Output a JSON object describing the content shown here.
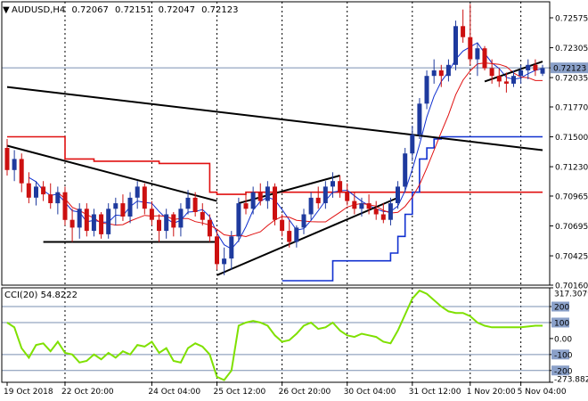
{
  "header": {
    "symbol": "AUDUSD,H4",
    "open": "0.72067",
    "high": "0.72151",
    "low": "0.72047",
    "close": "0.72123"
  },
  "price_axis": {
    "ticks": [
      "0.72575",
      "0.72305",
      "0.72123",
      "0.72035",
      "0.71770",
      "0.71500",
      "0.71230",
      "0.70965",
      "0.70695",
      "0.70425",
      "0.70160"
    ],
    "current_price": "0.72123"
  },
  "cci": {
    "title": "CCI(20) 54.8222",
    "ticks": [
      "317.3079",
      "200",
      "100",
      "0.00",
      "-100",
      "-200",
      "-273.8825"
    ]
  },
  "time_axis": {
    "labels": [
      "19 Oct 2018",
      "22 Oct 20:00",
      "24 Oct 04:00",
      "25 Oct 12:00",
      "26 Oct 20:00",
      "30 Oct 04:00",
      "31 Oct 12:00",
      "1 Nov 20:00",
      "5 Nov 04:00"
    ]
  },
  "colors": {
    "bull": "#1e3a9e",
    "bear": "#cc1010",
    "trendline": "#000000",
    "indicator_red": "#e01010",
    "indicator_blue": "#1030d0",
    "cci_line": "#7fe000",
    "grid": "#7a8fb0"
  },
  "chart_data": {
    "type": "candlestick",
    "symbol": "AUDUSD",
    "timeframe": "H4",
    "ylim": [
      0.7016,
      0.7272
    ],
    "candles": [
      [
        0.714,
        0.7148,
        0.7115,
        0.712
      ],
      [
        0.712,
        0.7138,
        0.711,
        0.713
      ],
      [
        0.713,
        0.7135,
        0.71,
        0.7108
      ],
      [
        0.7108,
        0.7118,
        0.709,
        0.7095
      ],
      [
        0.7095,
        0.711,
        0.7088,
        0.7105
      ],
      [
        0.7105,
        0.711,
        0.7092,
        0.7098
      ],
      [
        0.7098,
        0.7108,
        0.7085,
        0.709
      ],
      [
        0.709,
        0.7105,
        0.708,
        0.71
      ],
      [
        0.71,
        0.7105,
        0.707,
        0.7075
      ],
      [
        0.7075,
        0.7085,
        0.7055,
        0.7068
      ],
      [
        0.7068,
        0.709,
        0.7058,
        0.7085
      ],
      [
        0.7085,
        0.709,
        0.706,
        0.7065
      ],
      [
        0.7065,
        0.7085,
        0.706,
        0.708
      ],
      [
        0.708,
        0.7082,
        0.7058,
        0.7062
      ],
      [
        0.7062,
        0.709,
        0.7058,
        0.7085
      ],
      [
        0.7085,
        0.7095,
        0.707,
        0.709
      ],
      [
        0.709,
        0.7098,
        0.7074,
        0.7078
      ],
      [
        0.7078,
        0.71,
        0.7072,
        0.7095
      ],
      [
        0.7095,
        0.711,
        0.7085,
        0.7105
      ],
      [
        0.7105,
        0.7108,
        0.708,
        0.7085
      ],
      [
        0.7085,
        0.7092,
        0.707,
        0.7075
      ],
      [
        0.7075,
        0.708,
        0.7055,
        0.7065
      ],
      [
        0.7065,
        0.7085,
        0.7058,
        0.708
      ],
      [
        0.708,
        0.7082,
        0.706,
        0.7068
      ],
      [
        0.7068,
        0.709,
        0.706,
        0.7085
      ],
      [
        0.7085,
        0.7102,
        0.708,
        0.7095
      ],
      [
        0.7095,
        0.71,
        0.7078,
        0.7082
      ],
      [
        0.7082,
        0.709,
        0.707,
        0.7075
      ],
      [
        0.7075,
        0.708,
        0.7055,
        0.706
      ],
      [
        0.706,
        0.7065,
        0.703,
        0.7035
      ],
      [
        0.7035,
        0.705,
        0.7025,
        0.704
      ],
      [
        0.704,
        0.7065,
        0.703,
        0.706
      ],
      [
        0.706,
        0.7095,
        0.7055,
        0.709
      ],
      [
        0.709,
        0.71,
        0.708,
        0.7085
      ],
      [
        0.7085,
        0.7105,
        0.708,
        0.71
      ],
      [
        0.71,
        0.7108,
        0.7088,
        0.7092
      ],
      [
        0.7092,
        0.711,
        0.7085,
        0.7105
      ],
      [
        0.7105,
        0.7108,
        0.707,
        0.7075
      ],
      [
        0.7075,
        0.708,
        0.706,
        0.7065
      ],
      [
        0.7065,
        0.7075,
        0.705,
        0.7055
      ],
      [
        0.7055,
        0.707,
        0.705,
        0.7068
      ],
      [
        0.7068,
        0.7085,
        0.7062,
        0.708
      ],
      [
        0.708,
        0.71,
        0.7075,
        0.7095
      ],
      [
        0.7095,
        0.7105,
        0.7085,
        0.709
      ],
      [
        0.709,
        0.711,
        0.7085,
        0.7105
      ],
      [
        0.7105,
        0.7118,
        0.7095,
        0.711
      ],
      [
        0.711,
        0.7115,
        0.7095,
        0.71
      ],
      [
        0.71,
        0.7108,
        0.7088,
        0.7092
      ],
      [
        0.7092,
        0.71,
        0.708,
        0.7085
      ],
      [
        0.7085,
        0.7095,
        0.7078,
        0.709
      ],
      [
        0.709,
        0.7098,
        0.708,
        0.7085
      ],
      [
        0.7085,
        0.7092,
        0.7075,
        0.708
      ],
      [
        0.708,
        0.709,
        0.7072,
        0.7075
      ],
      [
        0.7075,
        0.7095,
        0.707,
        0.709
      ],
      [
        0.709,
        0.711,
        0.7085,
        0.7105
      ],
      [
        0.7105,
        0.714,
        0.71,
        0.7135
      ],
      [
        0.7135,
        0.716,
        0.7128,
        0.7152
      ],
      [
        0.7152,
        0.7185,
        0.7148,
        0.718
      ],
      [
        0.718,
        0.721,
        0.7175,
        0.7205
      ],
      [
        0.7205,
        0.722,
        0.7198,
        0.721
      ],
      [
        0.721,
        0.7215,
        0.7195,
        0.7205
      ],
      [
        0.7205,
        0.722,
        0.72,
        0.7215
      ],
      [
        0.7215,
        0.7255,
        0.721,
        0.725
      ],
      [
        0.725,
        0.7265,
        0.7235,
        0.724
      ],
      [
        0.724,
        0.727,
        0.7215,
        0.722
      ],
      [
        0.722,
        0.7235,
        0.7205,
        0.723
      ],
      [
        0.723,
        0.7232,
        0.721,
        0.7212
      ],
      [
        0.7212,
        0.722,
        0.7198,
        0.7205
      ],
      [
        0.7205,
        0.7212,
        0.7195,
        0.72
      ],
      [
        0.72,
        0.7208,
        0.719,
        0.7198
      ],
      [
        0.7198,
        0.721,
        0.7195,
        0.7205
      ],
      [
        0.7205,
        0.7215,
        0.7198,
        0.721
      ],
      [
        0.721,
        0.722,
        0.7202,
        0.7215
      ],
      [
        0.7215,
        0.722,
        0.7205,
        0.721
      ],
      [
        0.7207,
        0.7215,
        0.7205,
        0.7212
      ]
    ],
    "overlays": {
      "red_line": [
        0.715,
        0.715,
        0.715,
        0.715,
        0.715,
        0.715,
        0.715,
        0.715,
        0.713,
        0.713,
        0.713,
        0.713,
        0.7128,
        0.7128,
        0.7128,
        0.7128,
        0.7128,
        0.7128,
        0.7128,
        0.7128,
        0.7128,
        0.7126,
        0.7126,
        0.7126,
        0.7126,
        0.7126,
        0.7126,
        0.7126,
        0.71,
        0.7098,
        0.7098,
        0.7098,
        0.7098,
        0.71,
        0.71,
        0.71,
        0.71,
        0.71,
        0.71,
        0.71,
        0.71,
        0.71,
        0.71,
        0.71,
        0.71,
        0.71,
        0.71,
        0.71,
        0.71,
        0.71,
        0.71,
        0.71,
        0.71,
        0.71,
        0.71,
        0.71,
        0.71,
        0.71,
        0.71,
        0.71,
        0.71,
        0.71,
        0.71,
        0.71,
        0.71,
        0.71,
        0.71,
        0.71,
        0.71,
        0.71,
        0.71,
        0.71,
        0.71,
        0.71,
        0.71
      ],
      "blue_line": [
        null,
        null,
        null,
        null,
        null,
        null,
        null,
        null,
        null,
        null,
        null,
        null,
        null,
        null,
        null,
        null,
        null,
        null,
        null,
        null,
        null,
        null,
        null,
        null,
        null,
        null,
        null,
        null,
        null,
        null,
        null,
        null,
        null,
        null,
        null,
        null,
        null,
        null,
        0.702,
        0.702,
        0.702,
        0.702,
        0.702,
        0.702,
        0.702,
        0.7038,
        0.7038,
        0.7038,
        0.7038,
        0.7038,
        0.7038,
        0.7038,
        0.7038,
        0.7045,
        0.706,
        0.708,
        0.71,
        0.713,
        0.714,
        0.7148,
        0.715,
        0.715,
        0.715,
        0.715,
        0.715,
        0.715,
        0.715,
        0.715,
        0.715,
        0.715,
        0.715,
        0.715,
        0.715,
        0.715,
        0.715
      ]
    },
    "cci_values": [
      100,
      70,
      -60,
      -120,
      -40,
      -30,
      -80,
      -20,
      -90,
      -100,
      -150,
      -140,
      -100,
      -130,
      -90,
      -120,
      -80,
      -100,
      -40,
      -50,
      -20,
      -90,
      -60,
      -140,
      -150,
      -60,
      -30,
      -50,
      -100,
      -240,
      -260,
      -200,
      80,
      100,
      110,
      100,
      80,
      20,
      -20,
      -10,
      30,
      80,
      100,
      60,
      70,
      100,
      50,
      20,
      10,
      30,
      20,
      10,
      -20,
      -30,
      50,
      150,
      250,
      300,
      280,
      240,
      200,
      170,
      160,
      160,
      140,
      100,
      80,
      70,
      70,
      70,
      70,
      70,
      75,
      80,
      80
    ],
    "cci_ylim": [
      -273.8825,
      317.3079
    ],
    "trendlines": [
      {
        "from": [
          0,
          0.7195
        ],
        "to": [
          74,
          0.7138
        ]
      },
      {
        "from": [
          0,
          0.7142
        ],
        "to": [
          29,
          0.7092
        ]
      },
      {
        "from": [
          5,
          0.7055
        ],
        "to": [
          29,
          0.7055
        ]
      },
      {
        "from": [
          29,
          0.7025
        ],
        "to": [
          54,
          0.7095
        ]
      },
      {
        "from": [
          32,
          0.709
        ],
        "to": [
          46,
          0.7115
        ]
      },
      {
        "from": [
          66,
          0.72
        ],
        "to": [
          74,
          0.7218
        ]
      }
    ]
  }
}
